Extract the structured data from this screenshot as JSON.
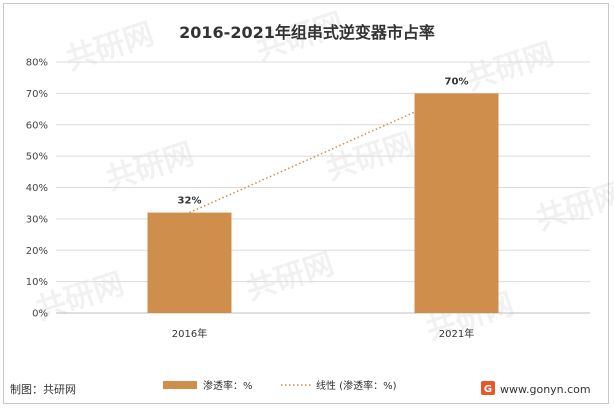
{
  "chart_data": {
    "type": "bar",
    "title": "2016-2021年组串式逆变器市占率",
    "categories": [
      "2016年",
      "2021年"
    ],
    "series": [
      {
        "name": "渗透率：%",
        "values": [
          32,
          70
        ],
        "color": "#d08e4c"
      }
    ],
    "trendline": {
      "name": "线性 (渗透率：%)",
      "style": "dotted",
      "color": "#d08e4c"
    },
    "data_labels": [
      "32%",
      "70%"
    ],
    "y_ticks": [
      "0%",
      "10%",
      "20%",
      "30%",
      "40%",
      "50%",
      "60%",
      "70%",
      "80%"
    ],
    "ylim": [
      0,
      80
    ],
    "grid": true,
    "legend_position": "bottom"
  },
  "footer": {
    "source": "制图：共研网",
    "website": "www.gonyn.com",
    "logo_letter": "G"
  },
  "watermark": {
    "text": "共研网"
  }
}
